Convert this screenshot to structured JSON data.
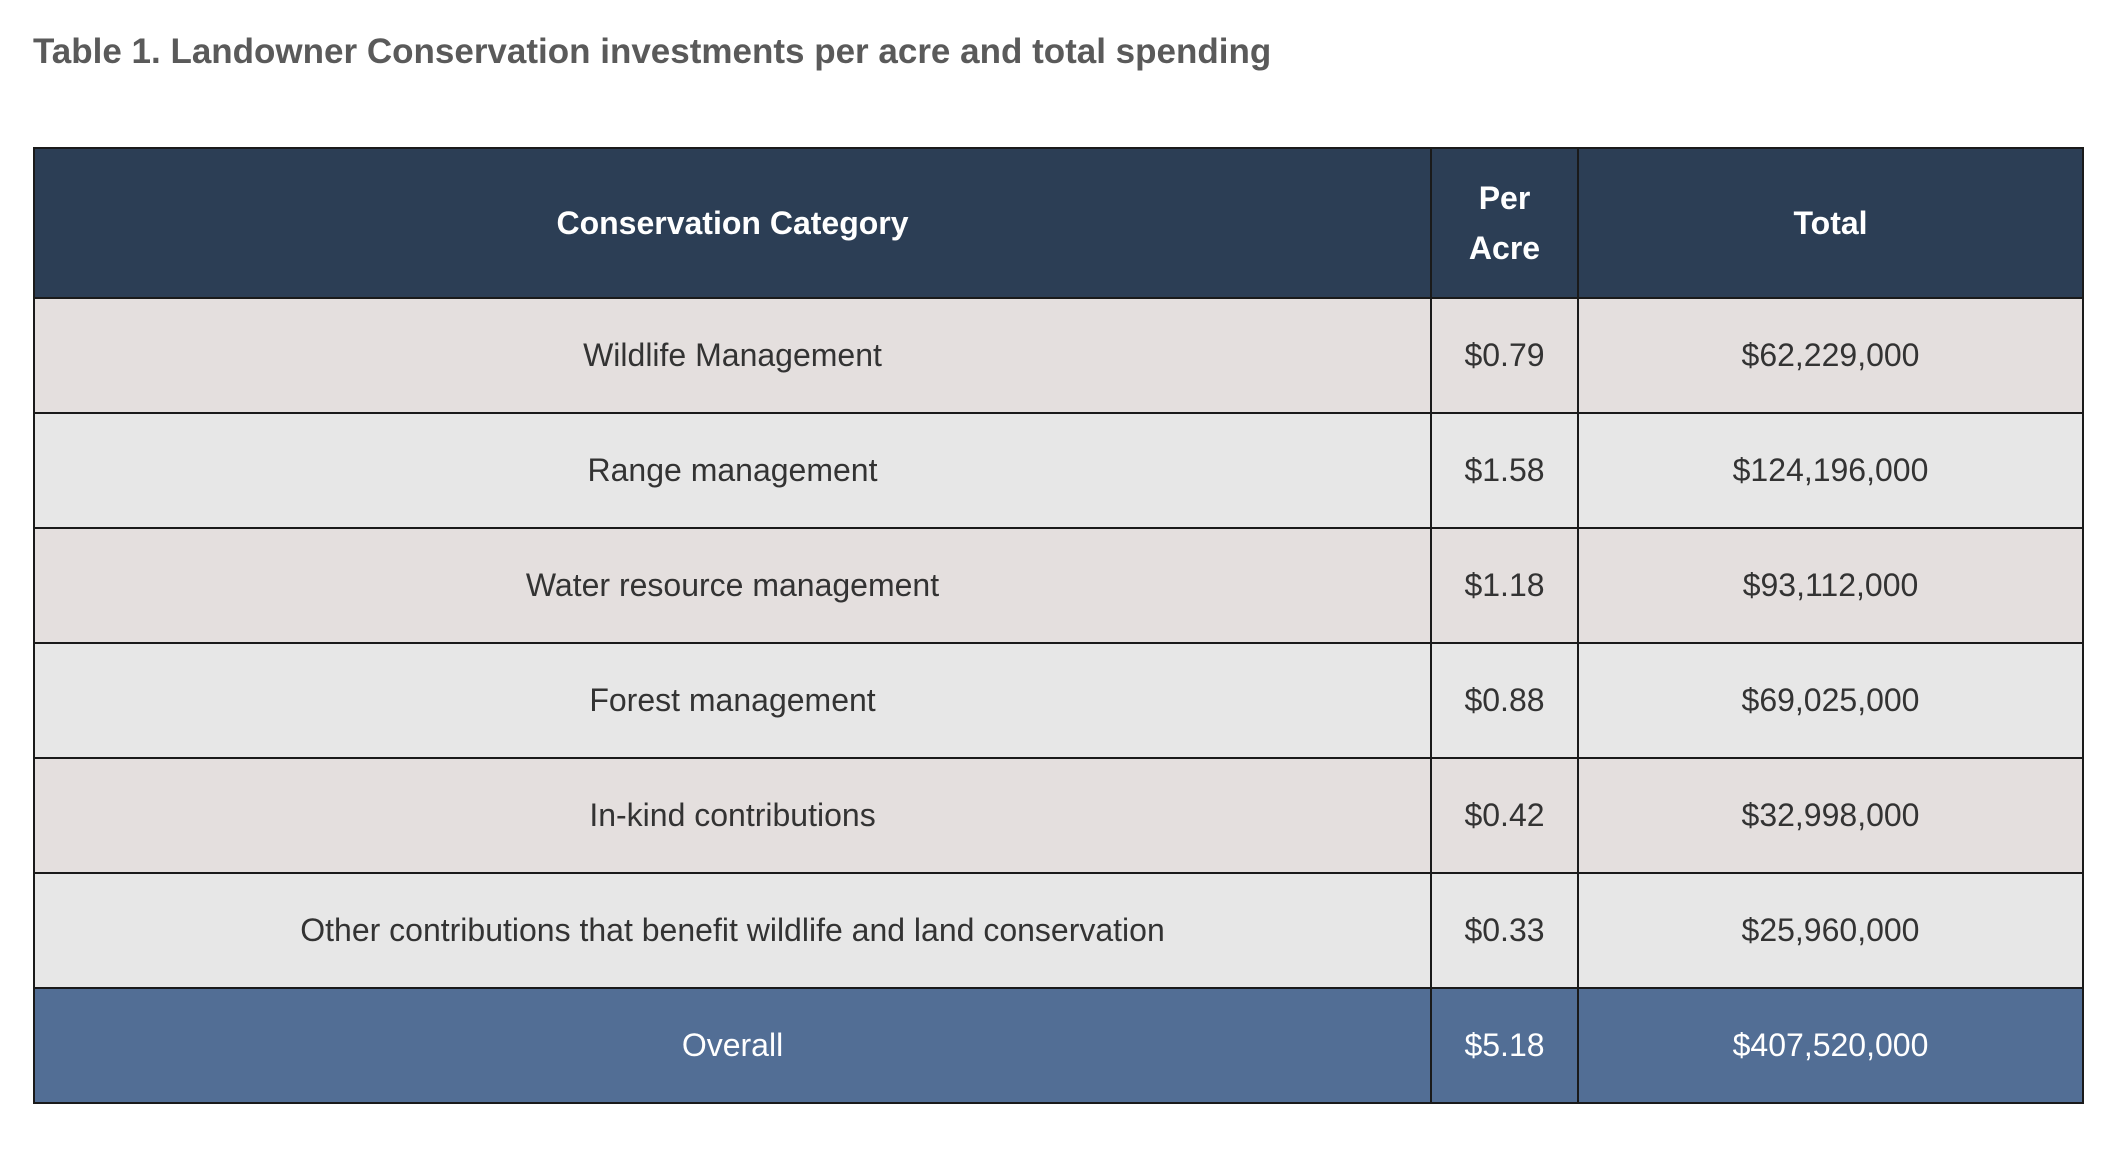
{
  "title": "Table 1. Landowner Conservation investments per acre and total spending",
  "table": {
    "headers": {
      "category": "Conservation Category",
      "per_acre_line1": "Per",
      "per_acre_line2": "Acre",
      "total": "Total"
    },
    "rows": [
      {
        "category": "Wildlife Management",
        "per_acre": "$0.79",
        "total": "$62,229,000"
      },
      {
        "category": "Range management",
        "per_acre": "$1.58",
        "total": "$124,196,000"
      },
      {
        "category": "Water resource management",
        "per_acre": "$1.18",
        "total": "$93,112,000"
      },
      {
        "category": "Forest management",
        "per_acre": "$0.88",
        "total": "$69,025,000"
      },
      {
        "category": "In-kind contributions",
        "per_acre": "$0.42",
        "total": "$32,998,000"
      },
      {
        "category": "Other contributions that benefit wildlife and land conservation",
        "per_acre": "$0.33",
        "total": "$25,960,000"
      }
    ],
    "overall": {
      "category": "Overall",
      "per_acre": "$5.18",
      "total": "$407,520,000"
    }
  },
  "colors": {
    "header_bg": "#2c3e55",
    "row_odd_bg": "#e4dfde",
    "row_even_bg": "#e7e7e7",
    "overall_bg": "#526e95",
    "title_text": "#5a5a5a"
  }
}
